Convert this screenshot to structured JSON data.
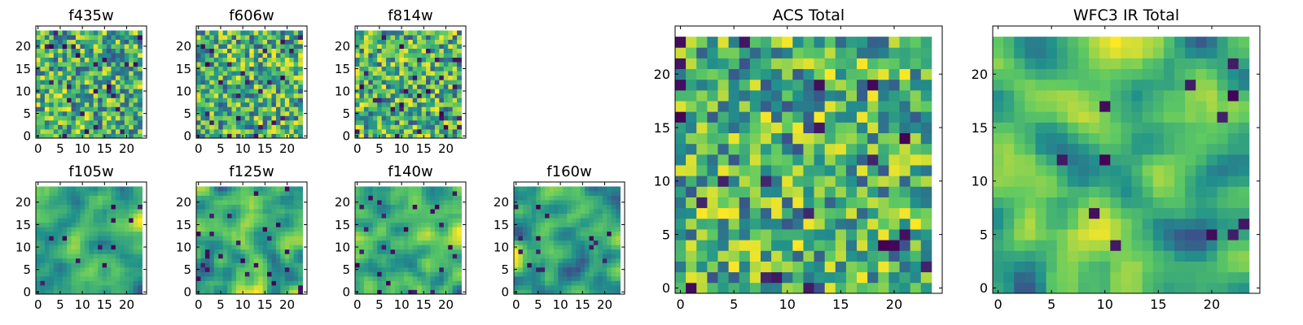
{
  "chart_data": [
    {
      "type": "heatmap",
      "title": "f435w",
      "xlim": [
        0,
        24
      ],
      "ylim": [
        0,
        24
      ],
      "xticks": [
        0,
        5,
        10,
        15,
        20
      ],
      "yticks": [
        0,
        5,
        10,
        15,
        20
      ],
      "grid_size": 24,
      "seed": 11,
      "smooth": 0,
      "lo_frac": 0.04
    },
    {
      "type": "heatmap",
      "title": "f606w",
      "xlim": [
        0,
        24
      ],
      "ylim": [
        0,
        24
      ],
      "xticks": [
        0,
        5,
        10,
        15,
        20
      ],
      "yticks": [
        0,
        5,
        10,
        15,
        20
      ],
      "grid_size": 24,
      "seed": 23,
      "smooth": 0,
      "lo_frac": 0.04
    },
    {
      "type": "heatmap",
      "title": "f814w",
      "xlim": [
        0,
        24
      ],
      "ylim": [
        0,
        24
      ],
      "xticks": [
        0,
        5,
        10,
        15,
        20
      ],
      "yticks": [
        0,
        5,
        10,
        15,
        20
      ],
      "grid_size": 24,
      "seed": 37,
      "smooth": 0,
      "lo_frac": 0.04
    },
    {
      "type": "heatmap",
      "title": "f105w",
      "xlim": [
        0,
        24
      ],
      "ylim": [
        0,
        24
      ],
      "xticks": [
        0,
        5,
        10,
        15,
        20
      ],
      "yticks": [
        0,
        5,
        10,
        15,
        20
      ],
      "grid_size": 24,
      "seed": 41,
      "smooth": 2,
      "lo_frac": 0.03
    },
    {
      "type": "heatmap",
      "title": "f125w",
      "xlim": [
        0,
        24
      ],
      "ylim": [
        0,
        24
      ],
      "xticks": [
        0,
        5,
        10,
        15,
        20
      ],
      "yticks": [
        0,
        5,
        10,
        15,
        20
      ],
      "grid_size": 24,
      "seed": 53,
      "smooth": 2,
      "lo_frac": 0.03
    },
    {
      "type": "heatmap",
      "title": "f140w",
      "xlim": [
        0,
        24
      ],
      "ylim": [
        0,
        24
      ],
      "xticks": [
        0,
        5,
        10,
        15,
        20
      ],
      "yticks": [
        0,
        5,
        10,
        15,
        20
      ],
      "grid_size": 24,
      "seed": 67,
      "smooth": 2,
      "lo_frac": 0.03
    },
    {
      "type": "heatmap",
      "title": "f160w",
      "xlim": [
        0,
        24
      ],
      "ylim": [
        0,
        24
      ],
      "xticks": [
        0,
        5,
        10,
        15,
        20
      ],
      "yticks": [
        0,
        5,
        10,
        15,
        20
      ],
      "grid_size": 24,
      "seed": 79,
      "smooth": 2,
      "lo_frac": 0.03
    },
    {
      "type": "heatmap",
      "title": "ACS Total",
      "xlim": [
        0,
        24
      ],
      "ylim": [
        0,
        24
      ],
      "xticks": [
        0,
        5,
        10,
        15,
        20
      ],
      "yticks": [
        0,
        5,
        10,
        15,
        20
      ],
      "grid_size": 24,
      "seed": 97,
      "smooth": 0,
      "lo_frac": 0.03
    },
    {
      "type": "heatmap",
      "title": "WFC3 IR Total",
      "xlim": [
        0,
        24
      ],
      "ylim": [
        0,
        24
      ],
      "xticks": [
        0,
        5,
        10,
        15,
        20
      ],
      "yticks": [
        0,
        5,
        10,
        15,
        20
      ],
      "grid_size": 24,
      "seed": 131,
      "smooth": 2,
      "lo_frac": 0.03
    }
  ],
  "colormap": [
    "#440154",
    "#3b528b",
    "#21918c",
    "#5ec962",
    "#fde725"
  ]
}
